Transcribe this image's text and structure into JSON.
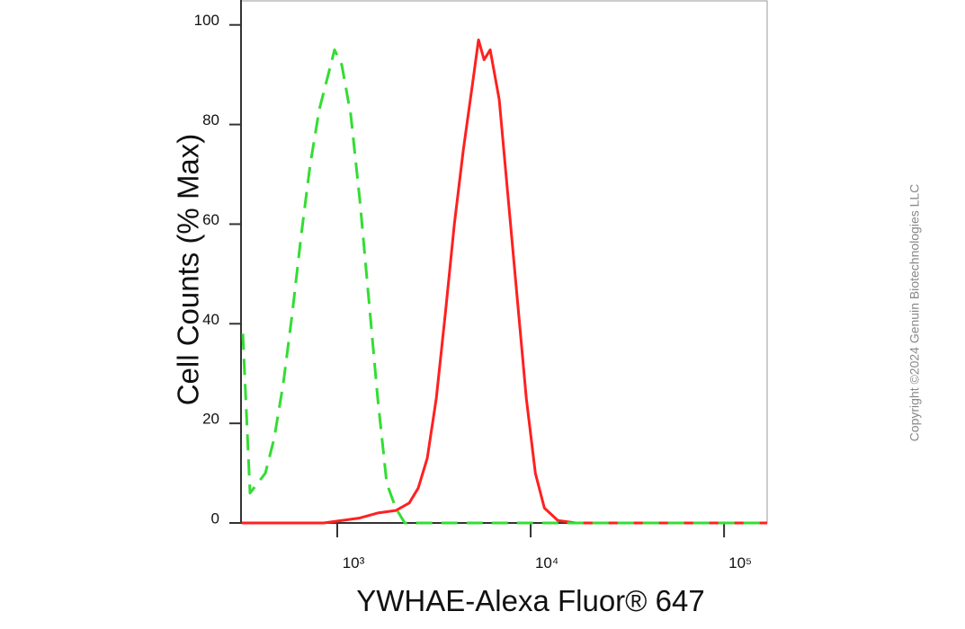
{
  "chart_data": {
    "type": "line",
    "x_label": "YWHAE-Alexa Fluor® 647",
    "y_label": "Cell Counts (% Max)",
    "copyright": "Copyright ©2024 Genuin Biotechnologies LLC",
    "xscale": "log",
    "xlim": [
      318,
      167000
    ],
    "ylim": [
      0,
      105
    ],
    "xticks": [
      {
        "value": 1000,
        "label": "10³"
      },
      {
        "value": 10000,
        "label": "10⁴"
      },
      {
        "value": 100000,
        "label": "10⁵"
      }
    ],
    "yticks": [
      0,
      20,
      40,
      60,
      80,
      100
    ],
    "series": [
      {
        "color": "#ff2020",
        "dashed": false,
        "x": [
          320,
          852,
          1055,
          1307,
          1619,
          2006,
          2355,
          2622,
          2920,
          3251,
          3620,
          4031,
          4489,
          4998,
          5375,
          5743,
          6176,
          6878,
          7659,
          8529,
          9497,
          10575,
          11776,
          13822,
          17117,
          167000
        ],
        "values": [
          0,
          0,
          0.5,
          1,
          2,
          2.5,
          4,
          7,
          13,
          25,
          42,
          60,
          75,
          88,
          97,
          93,
          95,
          85,
          65,
          45,
          25,
          10,
          3,
          0.5,
          0,
          0
        ]
      },
      {
        "color": "#33dd33",
        "dashed": true,
        "x": [
          325,
          354,
          425,
          472,
          526,
          585,
          652,
          725,
          807,
          898,
          968,
          1055,
          1174,
          1307,
          1455,
          1619,
          1802,
          2006,
          2233,
          167000
        ],
        "values": [
          38,
          6,
          10,
          17,
          28,
          42,
          58,
          72,
          83,
          90,
          95,
          92,
          82,
          65,
          45,
          25,
          8,
          3,
          0,
          0
        ]
      }
    ]
  }
}
